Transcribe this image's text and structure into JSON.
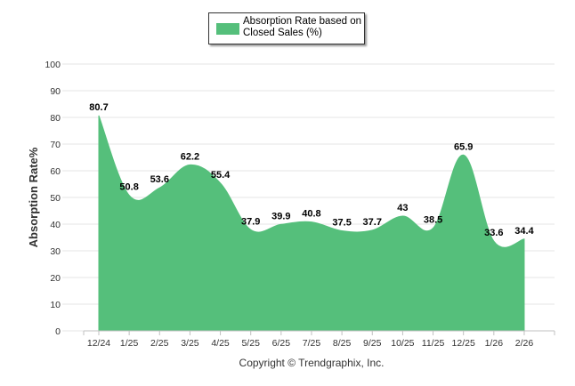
{
  "chart_data": {
    "type": "area",
    "title": "",
    "xlabel": "",
    "ylabel": "Absorption Rate%",
    "ylim": [
      0,
      100
    ],
    "yticks": [
      0,
      10,
      20,
      30,
      40,
      50,
      60,
      70,
      80,
      90,
      100
    ],
    "grid": true,
    "legend_position": "top-center",
    "categories": [
      "12/24",
      "1/25",
      "2/25",
      "3/25",
      "4/25",
      "5/25",
      "6/25",
      "7/25",
      "8/25",
      "9/25",
      "10/25",
      "11/25",
      "12/25",
      "1/26",
      "2/26"
    ],
    "series": [
      {
        "name": "Absorption Rate based on Closed Sales (%)",
        "color": "#55bf7b",
        "values": [
          80.7,
          50.8,
          53.6,
          62.2,
          55.4,
          37.9,
          39.9,
          40.8,
          37.5,
          37.7,
          43,
          38.5,
          65.9,
          33.6,
          34.4
        ],
        "labels": [
          "80.7",
          "50.8",
          "53.6",
          "62.2",
          "55.4",
          "37.9",
          "39.9",
          "40.8",
          "37.5",
          "37.7",
          "43",
          "38.5",
          "65.9",
          "33.6",
          "34.4"
        ]
      }
    ],
    "footer": "Copyright © Trendgraphix, Inc."
  },
  "legend": {
    "label": "Absorption Rate based on Closed Sales (%)",
    "color": "#55bf7b"
  },
  "colors": {
    "grid": "#e6e6e6",
    "axis": "#c0c0c0"
  }
}
